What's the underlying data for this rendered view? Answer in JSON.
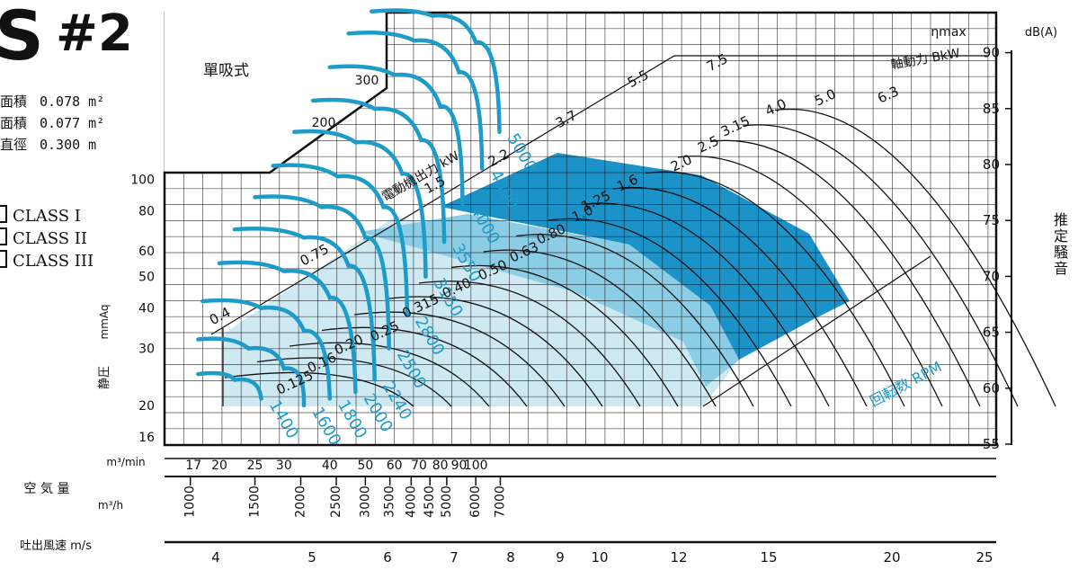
{
  "header": {
    "model_letter": "S",
    "model_number": "#2",
    "suction_type": "單吸式"
  },
  "specs": [
    {
      "label": "面積",
      "value": "0.078 m²"
    },
    {
      "label": "面積",
      "value": "0.077 m²"
    },
    {
      "label": "直徑",
      "value": "0.300 m"
    }
  ],
  "classes": [
    "CLASS I",
    "CLASS II",
    "CLASS III"
  ],
  "colors": {
    "class_I": "#cfe9f2",
    "class_II": "#8ccde6",
    "class_III": "#1b93c9",
    "curve": "#1e9bc8",
    "grid": "#111111"
  },
  "chart_data": {
    "type": "line",
    "title": "",
    "xlabel": "空 気 量 m³/min",
    "ylabel": "静圧 mmAq",
    "x_scale": "log",
    "y_scale": "log",
    "xlim": [
      16,
      120
    ],
    "ylim": [
      16,
      300
    ],
    "x_ticks_m3min": [
      17,
      20,
      25,
      30,
      40,
      50,
      60,
      70,
      80,
      90,
      100
    ],
    "x_ticks_m3h": [
      1000,
      1500,
      2000,
      2500,
      3000,
      3500,
      4000,
      4500,
      5000,
      6000,
      7000
    ],
    "x_label_m3h": "m³/h",
    "velocity_label": "吐出風速 m/s",
    "x_ticks_velocity": [
      4,
      5,
      6,
      7,
      8,
      9,
      10,
      12,
      15,
      20,
      25
    ],
    "y_ticks": [
      16,
      20,
      30,
      40,
      50,
      60,
      80,
      100,
      200,
      300
    ],
    "noise_axis": {
      "label": "dB(A)",
      "title": "推定騒音",
      "ticks": [
        55,
        60,
        65,
        70,
        75,
        80,
        85,
        90
      ]
    },
    "motor_output_label": "電動機出力 kW",
    "motor_output_kw": [
      0.4,
      0.75,
      1.5,
      2.2,
      3.7,
      5.5,
      7.5
    ],
    "shaft_power_label": "軸動力 BkW",
    "eta_label": "ηmax",
    "rpm_label": "回転数 RPM",
    "rpm_curves": [
      {
        "rpm": 1400,
        "points": [
          [
            17.5,
            25
          ],
          [
            22,
            24
          ],
          [
            26,
            21
          ]
        ]
      },
      {
        "rpm": 1600,
        "points": [
          [
            17.5,
            32
          ],
          [
            24,
            30
          ],
          [
            30,
            26
          ],
          [
            34,
            20
          ]
        ]
      },
      {
        "rpm": 1800,
        "points": [
          [
            18,
            42
          ],
          [
            26,
            40
          ],
          [
            34,
            34
          ],
          [
            40,
            21
          ]
        ]
      },
      {
        "rpm": 2000,
        "points": [
          [
            20,
            55
          ],
          [
            30,
            52
          ],
          [
            40,
            43
          ],
          [
            47,
            22
          ]
        ]
      },
      {
        "rpm": 2240,
        "points": [
          [
            22,
            70
          ],
          [
            34,
            66
          ],
          [
            45,
            54
          ],
          [
            53,
            24
          ]
        ]
      },
      {
        "rpm": 2500,
        "points": [
          [
            25,
            88
          ],
          [
            38,
            82
          ],
          [
            50,
            66
          ],
          [
            58,
            30
          ]
        ]
      },
      {
        "rpm": 2800,
        "points": [
          [
            28,
            110
          ],
          [
            42,
            102
          ],
          [
            56,
            82
          ],
          [
            65,
            38
          ]
        ]
      },
      {
        "rpm": 3150,
        "points": [
          [
            32,
            140
          ],
          [
            47,
            130
          ],
          [
            63,
            104
          ],
          [
            73,
            50
          ]
        ]
      },
      {
        "rpm": 3550,
        "points": [
          [
            36,
            175
          ],
          [
            53,
            165
          ],
          [
            71,
            132
          ],
          [
            82,
            64
          ]
        ]
      },
      {
        "rpm": 4000,
        "points": [
          [
            40,
            222
          ],
          [
            60,
            210
          ],
          [
            80,
            168
          ],
          [
            92,
            84
          ]
        ]
      },
      {
        "rpm": 4500,
        "points": [
          [
            45,
            282
          ],
          [
            68,
            268
          ],
          [
            90,
            214
          ],
          [
            104,
            108
          ]
        ]
      },
      {
        "rpm": 5000,
        "points": [
          [
            52,
            330
          ],
          [
            76,
            320
          ],
          [
            100,
            265
          ],
          [
            116,
            140
          ]
        ]
      }
    ],
    "power_labels": [
      "0.125",
      "0.16",
      "0.20",
      "0.25",
      "0.315",
      "0.40",
      "0.50",
      "0.63",
      "0.80",
      "1.0",
      "1.25",
      "1.6",
      "2.0",
      "2.5",
      "3.15",
      "4.0",
      "5.0",
      "6.3"
    ]
  }
}
